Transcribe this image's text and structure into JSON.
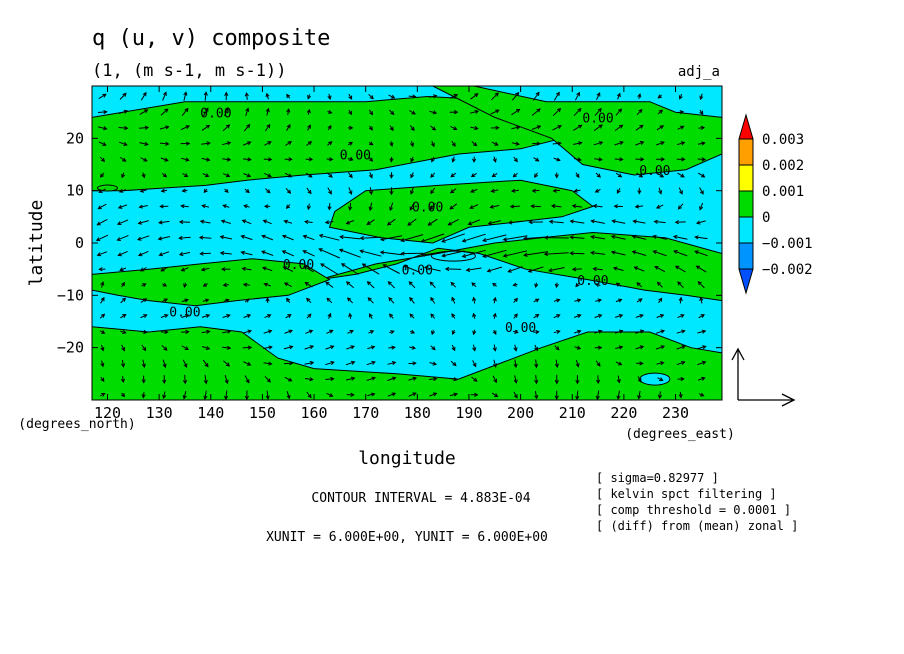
{
  "chart_data": {
    "type": "heatmap",
    "title": "q (u, v) composite",
    "subtitle": "(1, (m s-1, m s-1))",
    "run_label": "adj_a",
    "xlabel": "longitude",
    "ylabel": "latitude",
    "x_units": "(degrees_east)",
    "y_units": "(degrees_north)",
    "xlim": [
      117,
      239
    ],
    "ylim": [
      -30,
      30
    ],
    "x_ticks": [
      120,
      130,
      140,
      150,
      160,
      170,
      180,
      190,
      200,
      210,
      220,
      230
    ],
    "y_ticks": [
      20,
      10,
      0,
      -10,
      -20
    ],
    "x_tick_labels": [
      "120",
      "130",
      "140",
      "150",
      "160",
      "170",
      "180",
      "190",
      "200",
      "210",
      "220",
      "230"
    ],
    "y_tick_labels": [
      "20",
      "10",
      "0",
      "−10",
      "−20"
    ],
    "grid": false,
    "colorbar": {
      "levels": [
        {
          "label": "0.003",
          "color": "#ff0000"
        },
        {
          "label": "0.002",
          "color": "#ffa000"
        },
        {
          "label": "0.001",
          "color": "#ffff00"
        },
        {
          "label": "0",
          "color": "#00dc00"
        },
        {
          "label": "−0.001",
          "color": "#00e8ff"
        },
        {
          "label": "−0.002",
          "color": "#0094ff"
        }
      ],
      "extend_top_color": "#ff0000",
      "extend_bottom_color": "#0050ff"
    },
    "fill_colors": {
      "positive": "#00dc00",
      "negative": "#00e8ff",
      "strong_negative": "#0094ff"
    },
    "contour_labels": [
      {
        "text": "0.00",
        "lon": 141,
        "lat": 24
      },
      {
        "text": "0.00",
        "lon": 168,
        "lat": 16
      },
      {
        "text": "0.00",
        "lon": 215,
        "lat": 23
      },
      {
        "text": "0.00",
        "lon": 226,
        "lat": 13
      },
      {
        "text": "0.00",
        "lon": 182,
        "lat": 6
      },
      {
        "text": "0.00",
        "lon": 157,
        "lat": -5
      },
      {
        "text": "0.00",
        "lon": 180,
        "lat": -6
      },
      {
        "text": "0.00",
        "lon": 214,
        "lat": -8
      },
      {
        "text": "0.00",
        "lon": 135,
        "lat": -14
      },
      {
        "text": "0.00",
        "lon": 200,
        "lat": -17
      }
    ],
    "positive_regions": [
      [
        [
          117,
          24
        ],
        [
          135,
          27
        ],
        [
          150,
          27
        ],
        [
          170,
          27
        ],
        [
          182,
          28
        ],
        [
          200,
          27
        ],
        [
          204,
          24
        ],
        [
          208,
          20
        ],
        [
          200,
          18
        ],
        [
          188,
          17
        ],
        [
          172,
          14
        ],
        [
          158,
          13
        ],
        [
          147,
          12
        ],
        [
          139,
          11
        ],
        [
          131,
          10.5
        ],
        [
          123,
          10
        ],
        [
          117,
          10
        ]
      ],
      [
        [
          191,
          30
        ],
        [
          205,
          27
        ],
        [
          225,
          27
        ],
        [
          230,
          25
        ],
        [
          239,
          24
        ],
        [
          239,
          17
        ],
        [
          232,
          14
        ],
        [
          222,
          13
        ],
        [
          212,
          15
        ],
        [
          206,
          20
        ],
        [
          195,
          24
        ],
        [
          187,
          28
        ],
        [
          183,
          30
        ]
      ],
      [
        [
          164,
          6
        ],
        [
          170,
          10
        ],
        [
          184,
          11
        ],
        [
          200,
          12
        ],
        [
          210,
          10
        ],
        [
          214,
          7
        ],
        [
          208,
          5
        ],
        [
          199,
          4
        ],
        [
          190,
          3
        ],
        [
          183,
          0
        ],
        [
          173,
          1
        ],
        [
          163,
          3
        ]
      ],
      [
        [
          161,
          -7
        ],
        [
          168,
          -6
        ],
        [
          176,
          -4
        ],
        [
          184,
          -1
        ],
        [
          192,
          -2
        ],
        [
          201,
          -5
        ],
        [
          213,
          -7
        ],
        [
          224,
          -9
        ],
        [
          232,
          -10
        ],
        [
          239,
          -11
        ],
        [
          239,
          -2
        ],
        [
          228,
          1
        ],
        [
          214,
          2
        ],
        [
          204,
          1
        ],
        [
          195,
          0
        ],
        [
          184,
          -2
        ],
        [
          172,
          -4
        ]
      ],
      [
        [
          117,
          -6
        ],
        [
          128,
          -5
        ],
        [
          138,
          -4
        ],
        [
          148,
          -3
        ],
        [
          158,
          -4
        ],
        [
          163,
          -7
        ],
        [
          155,
          -10
        ],
        [
          145,
          -11
        ],
        [
          137,
          -12
        ],
        [
          128,
          -11
        ],
        [
          122,
          -10
        ],
        [
          117,
          -9
        ]
      ],
      [
        [
          117,
          -16
        ],
        [
          128,
          -17
        ],
        [
          138,
          -16
        ],
        [
          146,
          -17
        ],
        [
          153,
          -22
        ],
        [
          160,
          -24
        ],
        [
          176,
          -25
        ],
        [
          188,
          -26
        ],
        [
          196,
          -23
        ],
        [
          204,
          -20
        ],
        [
          213,
          -17
        ],
        [
          225,
          -17
        ],
        [
          233,
          -20
        ],
        [
          239,
          -21
        ],
        [
          239,
          -30
        ],
        [
          117,
          -30
        ]
      ]
    ],
    "vector_field": {
      "xunit": "6.000E+00",
      "yunit": "6.000E+00",
      "ref_label": "XUNIT = 6.000E+00, YUNIT = 6.000E+00"
    },
    "contour_interval_label": "CONTOUR INTERVAL = 4.883E-04",
    "annotations": [
      "[ sigma=0.82977 ]",
      "[ kelvin spct filtering ]",
      "[ comp threshold = 0.0001 ]",
      "[ (diff) from (mean) zonal ]"
    ]
  }
}
